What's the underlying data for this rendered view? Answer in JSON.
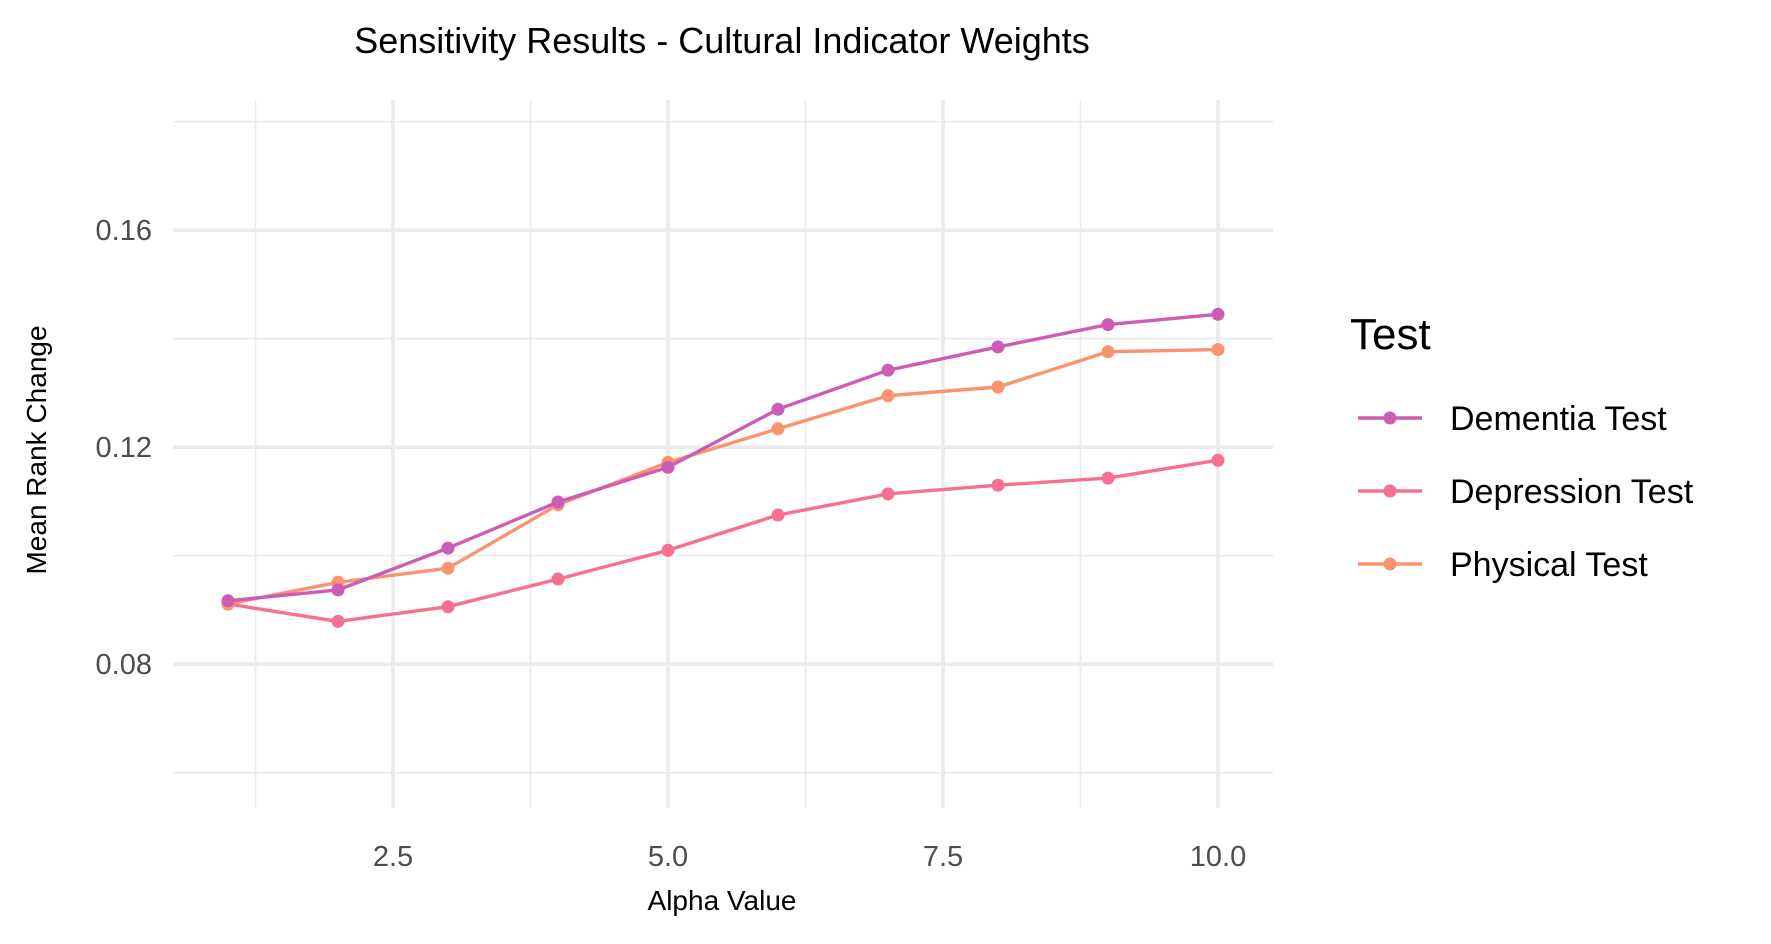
{
  "chart_data": {
    "type": "line",
    "title": "Sensitivity Results - Cultural Indicator Weights",
    "xlabel": "Alpha Value",
    "ylabel": "Mean Rank Change",
    "xlim": [
      0.5,
      10.5
    ],
    "ylim": [
      0.0535,
      0.184
    ],
    "x_ticks": [
      2.5,
      5.0,
      7.5,
      10.0
    ],
    "x_tick_labels": [
      "2.5",
      "5.0",
      "7.5",
      "10.0"
    ],
    "y_ticks": [
      0.08,
      0.12,
      0.16
    ],
    "y_tick_labels": [
      "0.08",
      "0.12",
      "0.16"
    ],
    "grid": true,
    "legend_title": "Test",
    "legend_position": "right",
    "x": [
      1,
      2,
      3,
      4,
      5,
      6,
      7,
      8,
      9,
      10
    ],
    "series": [
      {
        "name": "Dementia Test",
        "color": "#cc5cb6",
        "values": [
          0.0917,
          0.0937,
          0.1014,
          0.1099,
          0.1163,
          0.127,
          0.1342,
          0.1385,
          0.1426,
          0.1445
        ]
      },
      {
        "name": "Depression Test",
        "color": "#f7708f",
        "values": [
          0.0911,
          0.0879,
          0.0906,
          0.0957,
          0.101,
          0.1075,
          0.1114,
          0.113,
          0.1143,
          0.1176
        ]
      },
      {
        "name": "Physical Test",
        "color": "#fb9270",
        "values": [
          0.0911,
          0.0951,
          0.0977,
          0.1094,
          0.1172,
          0.1234,
          0.1295,
          0.1311,
          0.1376,
          0.138
        ]
      }
    ]
  }
}
